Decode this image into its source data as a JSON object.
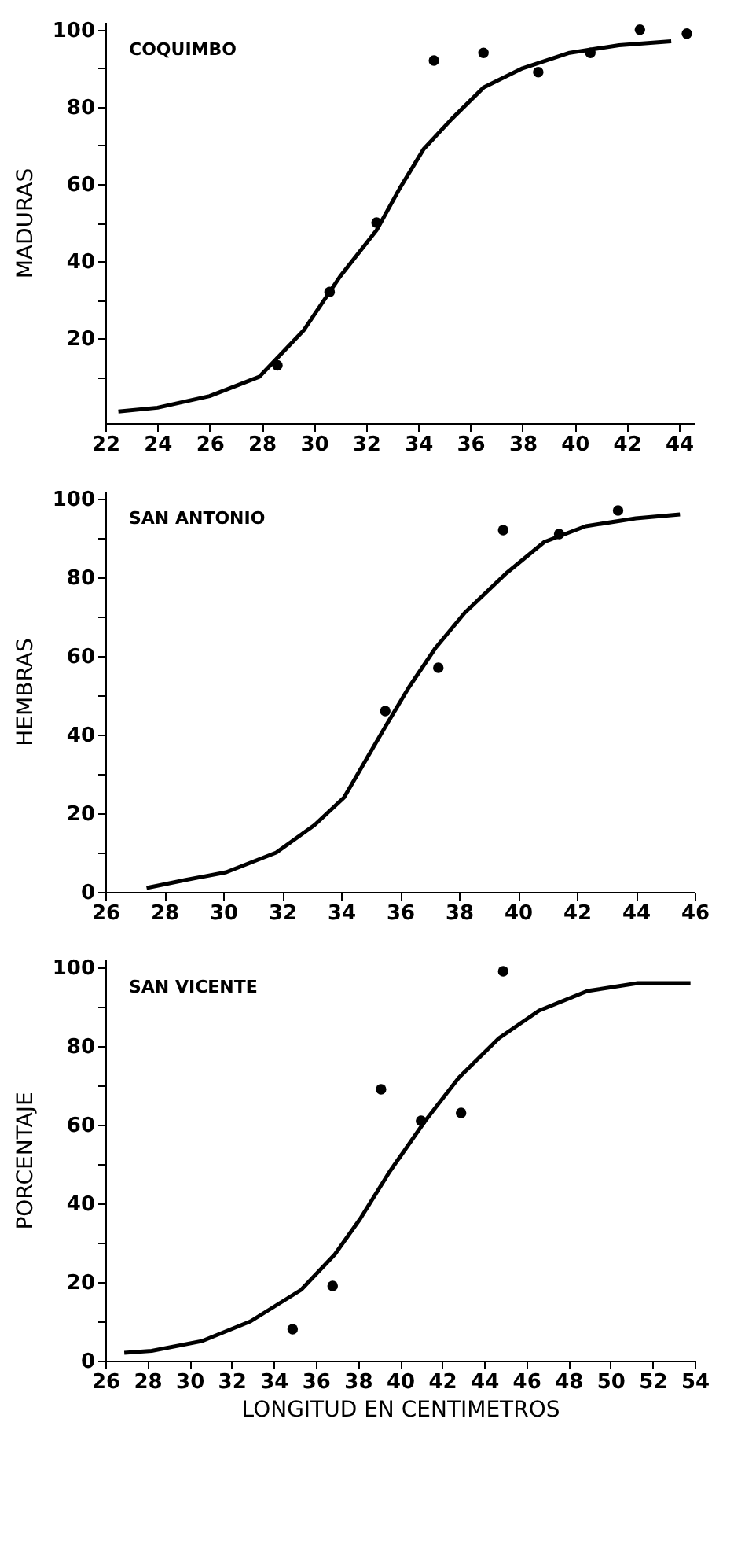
{
  "chart_data": [
    {
      "type": "scatter",
      "annotations": [
        "COQUIMBO"
      ],
      "ylabel": "MADURAS",
      "xlim": [
        22,
        44.6
      ],
      "ylim": [
        -2,
        102
      ],
      "xticks": [
        22,
        24,
        26,
        28,
        30,
        32,
        34,
        36,
        38,
        40,
        42,
        44
      ],
      "yticks": [
        {
          "value": 10,
          "label": null
        },
        20,
        {
          "value": 30,
          "label": null
        },
        40,
        {
          "value": 50,
          "label": null
        },
        60,
        {
          "value": 70,
          "label": null
        },
        80,
        {
          "value": 90,
          "label": null
        },
        100
      ],
      "grid": false,
      "series": [
        {
          "type": "scatter",
          "marker": "circle",
          "color": "#000000",
          "x": [
            28.6,
            30.6,
            32.4,
            34.6,
            36.5,
            38.6,
            40.6,
            42.5,
            44.3
          ],
          "values": [
            13,
            32,
            50,
            92,
            94,
            89,
            94,
            100,
            99
          ]
        },
        {
          "type": "line",
          "color": "#000000",
          "x": [
            22.5,
            24.0,
            26.0,
            27.9,
            29.6,
            31.0,
            32.4,
            33.3,
            34.2,
            35.3,
            36.5,
            38.0,
            39.8,
            41.7,
            43.7
          ],
          "values": [
            1,
            2,
            5,
            10,
            22,
            36,
            48,
            59,
            69,
            77,
            85,
            90,
            94,
            96,
            97
          ]
        }
      ]
    },
    {
      "type": "scatter",
      "annotations": [
        "SAN  ANTONIO"
      ],
      "ylabel": "HEMBRAS",
      "xlim": [
        26,
        46
      ],
      "ylim": [
        0,
        102
      ],
      "xticks": [
        26,
        28,
        30,
        32,
        34,
        36,
        38,
        40,
        42,
        44,
        46
      ],
      "yticks": [
        0,
        {
          "value": 10,
          "label": null
        },
        20,
        {
          "value": 30,
          "label": null
        },
        40,
        {
          "value": 50,
          "label": null
        },
        60,
        {
          "value": 70,
          "label": null
        },
        80,
        {
          "value": 90,
          "label": null
        },
        100
      ],
      "grid": false,
      "series": [
        {
          "type": "scatter",
          "marker": "circle",
          "color": "#000000",
          "x": [
            35.5,
            37.3,
            39.5,
            41.4,
            43.4
          ],
          "values": [
            46,
            57,
            92,
            91,
            97
          ]
        },
        {
          "type": "line",
          "color": "#000000",
          "x": [
            27.4,
            28.7,
            30.1,
            31.8,
            33.1,
            34.1,
            34.8,
            35.5,
            36.3,
            37.2,
            38.2,
            39.6,
            40.9,
            42.3,
            44.0,
            45.5
          ],
          "values": [
            1,
            3,
            5,
            10,
            17,
            24,
            33,
            42,
            52,
            62,
            71,
            81,
            89,
            93,
            95,
            96
          ]
        }
      ]
    },
    {
      "type": "scatter",
      "annotations": [
        "SAN   VICENTE"
      ],
      "ylabel": "PORCENTAJE",
      "xlabel": "LONGITUD     EN  CENTIMETROS",
      "xlim": [
        26,
        54
      ],
      "ylim": [
        0,
        102
      ],
      "xticks": [
        26,
        28,
        30,
        32,
        34,
        36,
        38,
        40,
        42,
        44,
        46,
        48,
        50,
        52,
        54
      ],
      "yticks": [
        0,
        {
          "value": 10,
          "label": null
        },
        20,
        {
          "value": 30,
          "label": null
        },
        40,
        {
          "value": 50,
          "label": null
        },
        60,
        {
          "value": 70,
          "label": null
        },
        80,
        {
          "value": 90,
          "label": null
        },
        100
      ],
      "grid": false,
      "series": [
        {
          "type": "scatter",
          "marker": "circle",
          "color": "#000000",
          "x": [
            34.9,
            36.8,
            39.1,
            41.0,
            42.9,
            44.9
          ],
          "values": [
            8,
            19,
            69,
            61,
            63,
            99
          ]
        },
        {
          "type": "line",
          "color": "#000000",
          "x": [
            26.9,
            28.2,
            30.6,
            32.9,
            35.3,
            36.9,
            38.1,
            39.5,
            41.2,
            42.8,
            44.7,
            46.6,
            48.9,
            51.3,
            53.8
          ],
          "values": [
            2,
            2.5,
            5,
            10,
            18,
            27,
            36,
            48,
            61,
            72,
            82,
            89,
            94,
            96,
            96
          ]
        }
      ]
    }
  ]
}
